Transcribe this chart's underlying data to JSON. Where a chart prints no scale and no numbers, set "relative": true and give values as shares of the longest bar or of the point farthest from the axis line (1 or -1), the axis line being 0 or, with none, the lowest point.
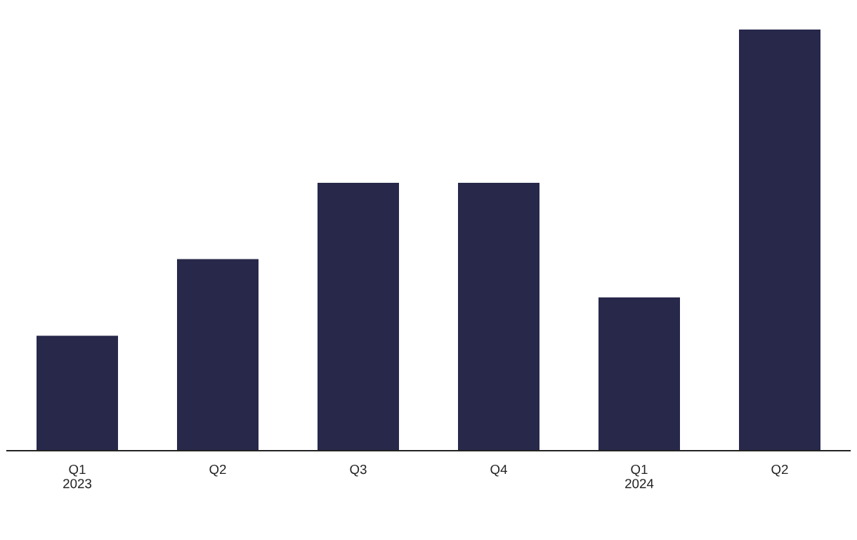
{
  "chart_data": {
    "type": "bar",
    "relative": true,
    "categories": [
      "Q1\n2023",
      "Q2",
      "Q3",
      "Q4",
      "Q1\n2024",
      "Q2"
    ],
    "values": [
      0.273,
      0.455,
      0.636,
      0.636,
      0.364,
      1
    ],
    "color": "#28284a",
    "grid": false,
    "legend": false
  }
}
